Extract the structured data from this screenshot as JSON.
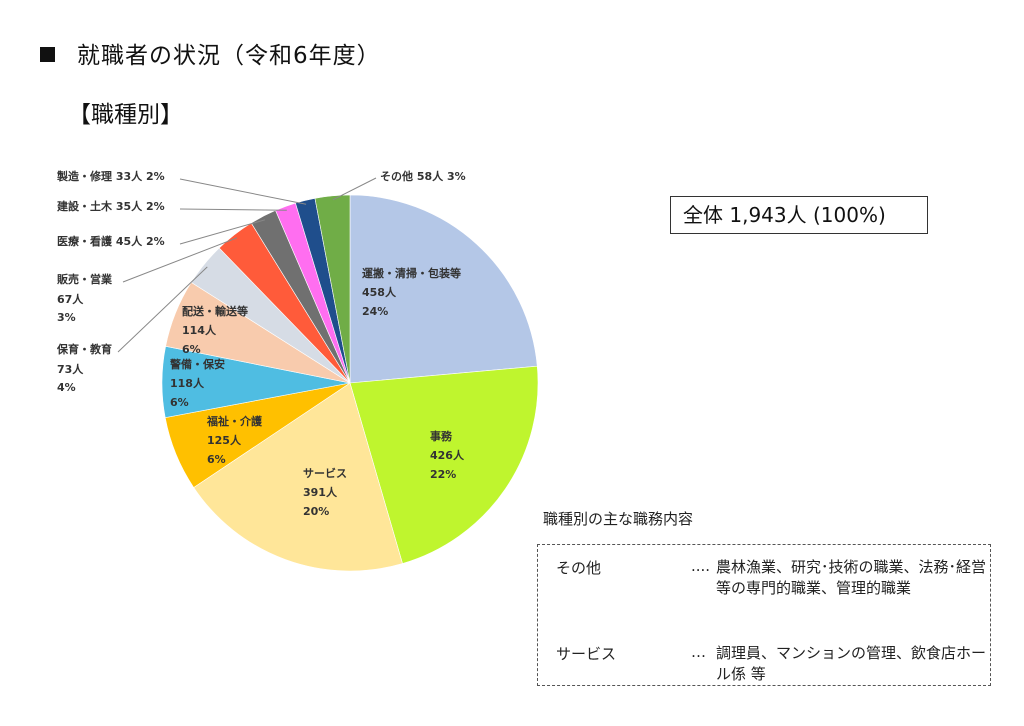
{
  "header": {
    "title": "就職者の状況（令和6年度）",
    "subtitle": "【職種別】"
  },
  "total_label": "全体 1,943人 (100%)",
  "duties": {
    "title": "職種別の主な職務内容",
    "rows": [
      {
        "term": "その他",
        "dots": "....",
        "desc": "農林漁業、研究･技術の職業、法務･経営等の専門的職業、管理的職業"
      },
      {
        "term": "サービス",
        "dots": "…",
        "desc": "調理員、マンションの管理、飲食店ホール係 等"
      }
    ]
  },
  "chart_data": {
    "type": "pie",
    "title": "",
    "total": 1943,
    "start": "12 o'clock",
    "direction": "clockwise",
    "slices": [
      {
        "name": "運搬・清掃・包装等",
        "value": 458,
        "count_label": "458人",
        "pct_label": "24%",
        "color": "#b4c7e7",
        "label": "inside"
      },
      {
        "name": "事務",
        "value": 426,
        "count_label": "426人",
        "pct_label": "22%",
        "color": "#bff52e",
        "label": "inside"
      },
      {
        "name": "サービス",
        "value": 391,
        "count_label": "391人",
        "pct_label": "20%",
        "color": "#ffe699",
        "label": "inside"
      },
      {
        "name": "福祉・介護",
        "value": 125,
        "count_label": "125人",
        "pct_label": "6%",
        "color": "#ffc000",
        "label": "inside"
      },
      {
        "name": "警備・保安",
        "value": 118,
        "count_label": "118人",
        "pct_label": "6%",
        "color": "#4fbde2",
        "label": "inside"
      },
      {
        "name": "配送・輸送等",
        "value": 114,
        "count_label": "114人",
        "pct_label": "6%",
        "color": "#f8cbad",
        "label": "inside"
      },
      {
        "name": "保育・教育",
        "value": 73,
        "count_label": "73人",
        "pct_label": "4%",
        "color": "#d6dce5",
        "label": "outside"
      },
      {
        "name": "販売・営業",
        "value": 67,
        "count_label": "67人",
        "pct_label": "3%",
        "color": "#ff5b3a",
        "label": "outside"
      },
      {
        "name": "医療・看護",
        "value": 45,
        "count_label": "45人",
        "pct_label": "2%",
        "color": "#707070",
        "label": "outside"
      },
      {
        "name": "建設・土木",
        "value": 35,
        "count_label": "35人",
        "pct_label": "2%",
        "color": "#ff6ef0",
        "label": "outside"
      },
      {
        "name": "製造・修理",
        "value": 33,
        "count_label": "33人",
        "pct_label": "2%",
        "color": "#1f4e8c",
        "label": "outside"
      },
      {
        "name": "その他",
        "value": 58,
        "count_label": "58人",
        "pct_label": "3%",
        "color": "#70ad47",
        "label": "outside"
      }
    ]
  }
}
